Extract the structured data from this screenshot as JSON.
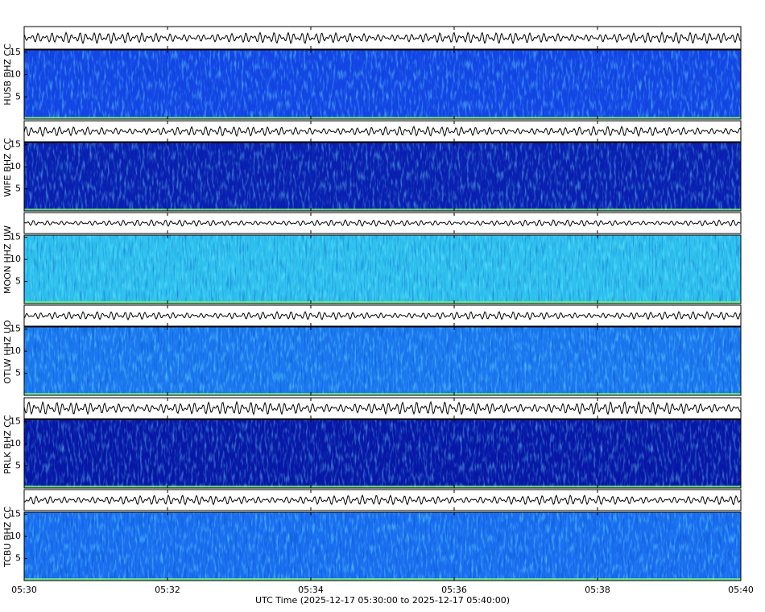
{
  "chart_data": [
    {
      "type": "spectrogram",
      "ylabel": "HUSB BHZ CC",
      "color": "#1446e6",
      "ylim": [
        0,
        15.5
      ],
      "yticks": [
        5,
        10,
        15
      ]
    },
    {
      "type": "spectrogram",
      "ylabel": "WIFE BHZ CC",
      "color": "#0a1eb0",
      "ylim": [
        0,
        15.5
      ],
      "yticks": [
        5,
        10,
        15
      ]
    },
    {
      "type": "spectrogram",
      "ylabel": "MOON HHZ UW",
      "color": "#2ec0ee",
      "ylim": [
        0,
        15.5
      ],
      "yticks": [
        5,
        10,
        15
      ]
    },
    {
      "type": "spectrogram",
      "ylabel": "OTLW HHZ UO",
      "color": "#1c78f0",
      "ylim": [
        0,
        15.5
      ],
      "yticks": [
        5,
        10,
        15
      ]
    },
    {
      "type": "spectrogram",
      "ylabel": "PRLK BHZ CC",
      "color": "#0816a6",
      "ylim": [
        0,
        15.5
      ],
      "yticks": [
        5,
        10,
        15
      ]
    },
    {
      "type": "spectrogram",
      "ylabel": "TCBU BHZ CC",
      "color": "#1a6ef0",
      "ylim": [
        0,
        15.5
      ],
      "yticks": [
        5,
        10,
        15
      ],
      "xticks": [
        "05:30",
        "05:32",
        "05:34",
        "05:36",
        "05:38",
        "05:40"
      ],
      "xlabel": "UTC Time (2025-12-17 05:30:00 to 2025-12-17 05:40:00)"
    }
  ]
}
